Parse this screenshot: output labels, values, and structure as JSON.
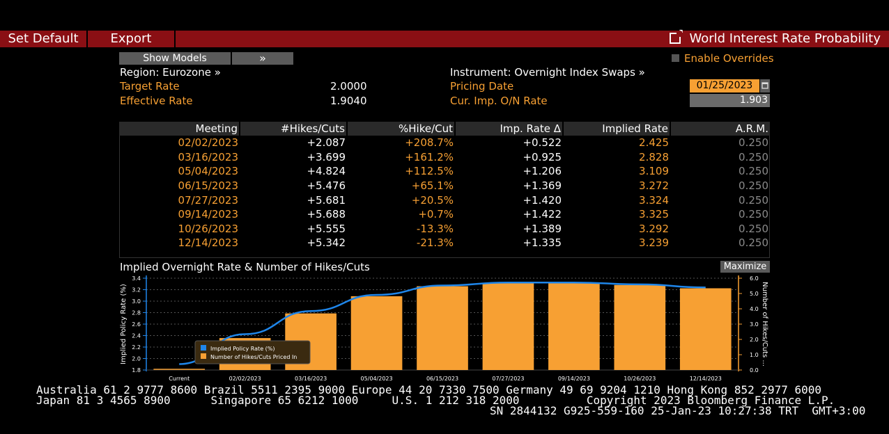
{
  "toolbar": {
    "set_default": "Set Default",
    "export": "Export",
    "title": "World Interest Rate Probability",
    "title_icon": "external-link-icon"
  },
  "controls": {
    "show_models": "Show Models",
    "expand": "»",
    "enable_overrides": "Enable Overrides"
  },
  "left_panel": {
    "region": "Region: Eurozone »",
    "target_rate_label": "Target Rate",
    "target_rate_value": "2.0000",
    "effective_rate_label": "Effective Rate",
    "effective_rate_value": "1.9040"
  },
  "right_panel": {
    "instrument": "Instrument: Overnight Index Swaps »",
    "pricing_date_label": "Pricing Date",
    "pricing_date_value": "01/25/2023",
    "cur_imp_label": "Cur. Imp. O/N Rate",
    "cur_imp_value": "1.903"
  },
  "table": {
    "headers": [
      "Meeting",
      "#Hikes/Cuts",
      "%Hike/Cut",
      "Imp. Rate Δ",
      "Implied Rate",
      "A.R.M."
    ],
    "rows": [
      [
        "02/02/2023",
        "+2.087",
        "+208.7%",
        "+0.522",
        "2.425",
        "0.250"
      ],
      [
        "03/16/2023",
        "+3.699",
        "+161.2%",
        "+0.925",
        "2.828",
        "0.250"
      ],
      [
        "05/04/2023",
        "+4.824",
        "+112.5%",
        "+1.206",
        "3.109",
        "0.250"
      ],
      [
        "06/15/2023",
        "+5.476",
        "+65.1%",
        "+1.369",
        "3.272",
        "0.250"
      ],
      [
        "07/27/2023",
        "+5.681",
        "+20.5%",
        "+1.420",
        "3.324",
        "0.250"
      ],
      [
        "09/14/2023",
        "+5.688",
        "+0.7%",
        "+1.422",
        "3.325",
        "0.250"
      ],
      [
        "10/26/2023",
        "+5.555",
        "-13.3%",
        "+1.389",
        "3.292",
        "0.250"
      ],
      [
        "12/14/2023",
        "+5.342",
        "-21.3%",
        "+1.335",
        "3.239",
        "0.250"
      ]
    ]
  },
  "chart_panel": {
    "title": "Implied Overnight Rate & Number of Hikes/Cuts",
    "maximize": "Maximize"
  },
  "chart_data": {
    "type": "bar",
    "categories": [
      "Current",
      "02/02/2023",
      "03/16/2023",
      "05/04/2023",
      "06/15/2023",
      "07/27/2023",
      "09/14/2023",
      "10/26/2023",
      "12/14/2023"
    ],
    "series": [
      {
        "name": "Implied Policy Rate (%)",
        "type": "line",
        "axis": "left",
        "values": [
          1.903,
          2.425,
          2.828,
          3.109,
          3.272,
          3.324,
          3.325,
          3.292,
          3.239
        ]
      },
      {
        "name": "Number of Hikes/Cuts Priced In",
        "type": "bar",
        "axis": "right",
        "values": [
          0.0,
          2.087,
          3.699,
          4.824,
          5.476,
          5.681,
          5.688,
          5.555,
          5.342
        ]
      }
    ],
    "ylabel": "Implied Policy Rate (%)",
    "y2label": "Number of Hikes/Cuts ...",
    "ylim": [
      1.8,
      3.4
    ],
    "y2lim": [
      0.0,
      6.0
    ],
    "yticks": [
      "1.8",
      "2.0",
      "2.2",
      "2.4",
      "2.6",
      "2.8",
      "3.0",
      "3.2",
      "3.4"
    ],
    "y2ticks": [
      "0.0",
      "1.0",
      "2.0",
      "3.0",
      "4.0",
      "5.0",
      "6.0"
    ],
    "grid": true,
    "legend": "bottom-left",
    "colors": {
      "line": "#1f86ea",
      "bar": "#f7a033"
    }
  },
  "footer": {
    "line1": "Australia 61 2 9777 8600 Brazil 5511 2395 9000 Europe 44 20 7330 7500 Germany 49 69 9204 1210 Hong Kong 852 2977 6000",
    "line2": "Japan 81 3 4565 8900      Singapore 65 6212 1000     U.S. 1 212 318 2000          Copyright 2023 Bloomberg Finance L.P.",
    "line3": "SN 2844132 G925-559-160 25-Jan-23 10:27:38 TRT  GMT+3:00"
  },
  "colors": {
    "accent_red": "#8a0f14",
    "orange": "#f7a033",
    "blue": "#1f86ea"
  }
}
